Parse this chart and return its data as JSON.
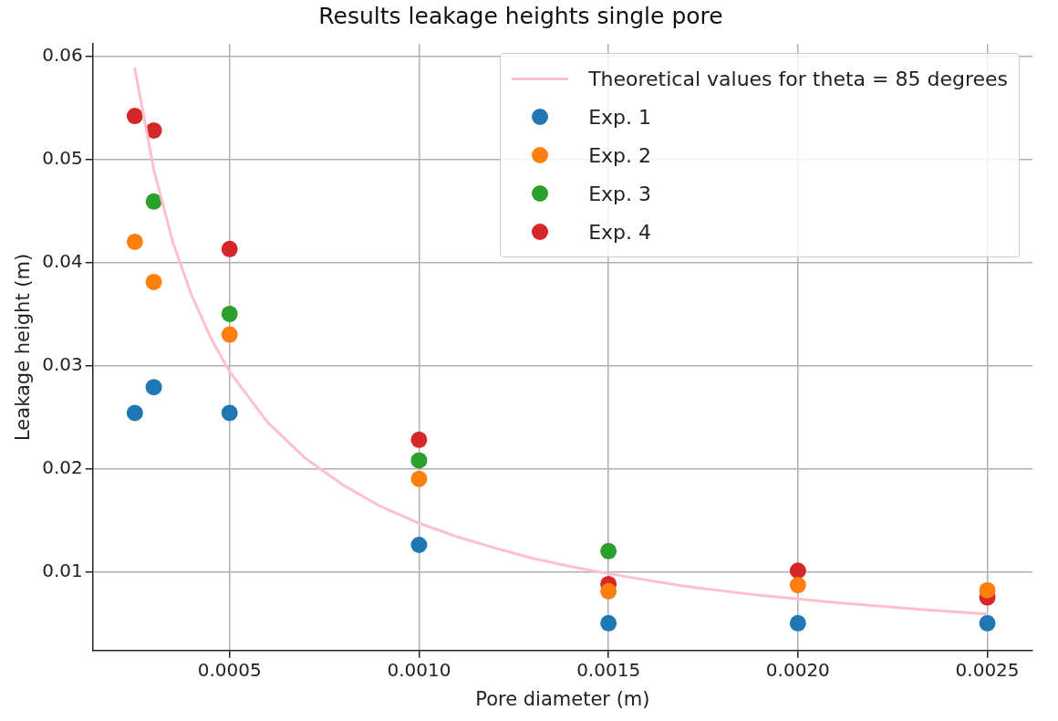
{
  "chart_data": {
    "type": "scatter",
    "title": "Results leakage heights single pore",
    "xlabel": "Pore diameter (m)",
    "ylabel": "Leakage height (m)",
    "xlim": [
      0.000139,
      0.002619
    ],
    "ylim": [
      0.00235,
      0.0612
    ],
    "xticks": [
      {
        "value": 0.0005,
        "label": "0.0005"
      },
      {
        "value": 0.001,
        "label": "0.0010"
      },
      {
        "value": 0.0015,
        "label": "0.0015"
      },
      {
        "value": 0.002,
        "label": "0.0020"
      },
      {
        "value": 0.0025,
        "label": "0.0025"
      }
    ],
    "yticks": [
      0.01,
      0.02,
      0.03,
      0.04,
      0.05,
      0.06
    ],
    "grid": true,
    "legend": "top right",
    "marker": "circle",
    "series": [
      {
        "name": "Theoretical values for theta = 85 degrees",
        "type": "line",
        "color": "#ffc0cb",
        "marker": "none",
        "line_style": "solid",
        "x": [
          0.00025,
          0.0003,
          0.00035,
          0.0004,
          0.00045,
          0.0005,
          0.0006,
          0.0007,
          0.0008,
          0.0009,
          0.001,
          0.0011,
          0.0012,
          0.0013,
          0.0014,
          0.0015,
          0.0017,
          0.0019,
          0.0021,
          0.0023,
          0.0025
        ],
        "values": [
          0.0588,
          0.049,
          0.042,
          0.0368,
          0.0327,
          0.0294,
          0.0245,
          0.021,
          0.0184,
          0.0163,
          0.0147,
          0.0134,
          0.0123,
          0.0113,
          0.0105,
          0.0098,
          0.0086,
          0.0077,
          0.007,
          0.0064,
          0.0059
        ]
      },
      {
        "name": "Exp. 1",
        "color": "#1f77b4",
        "x": [
          0.00025,
          0.0003,
          0.0005,
          0.001,
          0.0015,
          0.002,
          0.0025
        ],
        "values": [
          0.0254,
          0.0279,
          0.0254,
          0.0126,
          0.005,
          0.005,
          0.005
        ]
      },
      {
        "name": "Exp. 2",
        "color": "#ff7f0e",
        "x": [
          0.00025,
          0.0003,
          0.0005,
          0.001,
          0.0015,
          0.002,
          0.0025
        ],
        "values": [
          0.042,
          0.0381,
          0.033,
          0.019,
          0.0081,
          0.0087,
          0.0082
        ]
      },
      {
        "name": "Exp. 3",
        "color": "#2ca02c",
        "x": [
          0.0003,
          0.0005,
          0.001,
          0.0015
        ],
        "values": [
          0.0459,
          0.035,
          0.0208,
          0.012
        ]
      },
      {
        "name": "Exp. 4",
        "color": "#d62728",
        "x": [
          0.00025,
          0.0003,
          0.0005,
          0.001,
          0.0015,
          0.002,
          0.0025
        ],
        "values": [
          0.0542,
          0.0528,
          0.0413,
          0.0228,
          0.0088,
          0.0101,
          0.0075
        ]
      }
    ]
  }
}
